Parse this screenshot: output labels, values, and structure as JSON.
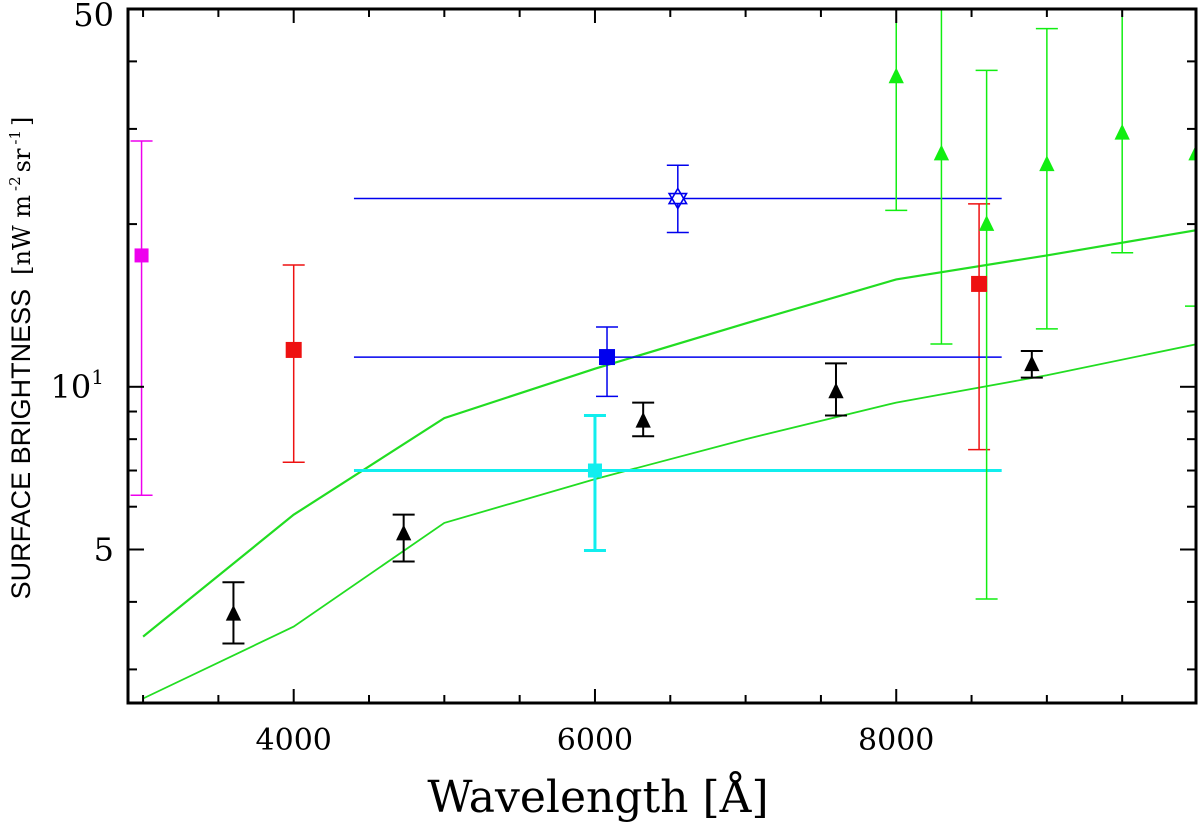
{
  "chart_data": {
    "type": "scatter",
    "xlabel": "Wavelength  [Å]",
    "ylabel": "SURFACE BRIGHTNESS",
    "ylabel_units_prefix": "[nW m",
    "ylabel_units_exp1": "-2",
    "ylabel_units_mid": " sr",
    "ylabel_units_exp2": "-1",
    "ylabel_units_suffix": "]",
    "xlim": [
      2900,
      9990
    ],
    "ylim": [
      2.6,
      50
    ],
    "yscale": "log",
    "x_ticks": [
      {
        "value": 4000,
        "label": "4000"
      },
      {
        "value": 6000,
        "label": "6000"
      },
      {
        "value": 8000,
        "label": "8000"
      }
    ],
    "y_ticks": [
      {
        "value": 5,
        "label": "5"
      },
      {
        "value": 10,
        "label": "10",
        "sup": "1"
      },
      {
        "value": 50,
        "label": "50"
      }
    ],
    "y_minor_ticks": [
      3,
      4,
      6,
      7,
      8,
      9,
      20,
      30,
      40
    ],
    "x_minor_step": 500,
    "model_lines": [
      {
        "name": "model-upper",
        "color": "#22dd22",
        "x": [
          3000,
          4000,
          5000,
          6000,
          7000,
          8000,
          9000,
          10000
        ],
        "y": [
          3.45,
          5.8,
          8.75,
          10.8,
          13.1,
          15.8,
          17.5,
          19.5
        ]
      },
      {
        "name": "model-lower",
        "color": "#22dd22",
        "x": [
          3000,
          4000,
          5000,
          6000,
          7000,
          8000,
          9000,
          10000
        ],
        "y": [
          2.65,
          3.6,
          5.6,
          6.75,
          8.0,
          9.35,
          10.5,
          12.0
        ]
      }
    ],
    "series": [
      {
        "name": "magenta-square",
        "color": "#ee00ee",
        "marker": "square",
        "size": 14,
        "lw": 1.5,
        "points": [
          {
            "x": 2990,
            "y": 17.5,
            "ylo": 6.3,
            "yhi": 28.5
          }
        ]
      },
      {
        "name": "red-squares",
        "color": "#ee1111",
        "marker": "square",
        "size": 16,
        "lw": 1.5,
        "points": [
          {
            "x": 4000,
            "y": 11.7,
            "ylo": 7.25,
            "yhi": 16.8
          },
          {
            "x": 8550,
            "y": 15.5,
            "ylo": 7.65,
            "yhi": 21.8
          }
        ]
      },
      {
        "name": "blue-square",
        "color": "#0000ee",
        "marker": "square",
        "size": 16,
        "lw": 1.5,
        "points": [
          {
            "x": 6080,
            "y": 11.35,
            "ylo": 9.6,
            "yhi": 12.9,
            "xlo": 4400,
            "xhi": 8700
          }
        ]
      },
      {
        "name": "blue-star",
        "color": "#0000ee",
        "marker": "star",
        "size": 20,
        "lw": 1.5,
        "points": [
          {
            "x": 6550,
            "y": 22.3,
            "ylo": 19.3,
            "yhi": 25.7,
            "xlo": 4400,
            "xhi": 8700
          }
        ]
      },
      {
        "name": "cyan-square",
        "color": "#11eeee",
        "marker": "square",
        "size": 14,
        "lw": 3,
        "points": [
          {
            "x": 6000,
            "y": 7.0,
            "ylo": 4.98,
            "yhi": 8.85,
            "xlo": 4400,
            "xhi": 8700
          }
        ]
      },
      {
        "name": "black-triangles",
        "color": "#000000",
        "marker": "triangle",
        "size": 18,
        "lw": 2,
        "points": [
          {
            "x": 3600,
            "y": 3.8,
            "ylo": 3.35,
            "yhi": 4.35
          },
          {
            "x": 4730,
            "y": 5.35,
            "ylo": 4.75,
            "yhi": 5.8
          },
          {
            "x": 6320,
            "y": 8.65,
            "ylo": 8.1,
            "yhi": 9.35
          },
          {
            "x": 7600,
            "y": 9.8,
            "ylo": 8.85,
            "yhi": 11.05
          },
          {
            "x": 8900,
            "y": 11.0,
            "ylo": 10.4,
            "yhi": 11.65
          }
        ]
      },
      {
        "name": "green-triangles",
        "color": "#11ee11",
        "marker": "triangle",
        "size": 18,
        "lw": 1.5,
        "points": [
          {
            "x": 8000,
            "y": 37.5,
            "ylo": 21.2,
            "yhi": 52.0
          },
          {
            "x": 8300,
            "y": 27.0,
            "ylo": 12.0,
            "yhi": 52.0
          },
          {
            "x": 8600,
            "y": 20.0,
            "ylo": 4.05,
            "yhi": 38.5
          },
          {
            "x": 9000,
            "y": 25.8,
            "ylo": 12.8,
            "yhi": 46.0
          },
          {
            "x": 9500,
            "y": 29.5,
            "ylo": 17.7,
            "yhi": 52.0
          },
          {
            "x": 9990,
            "y": 27.0,
            "ylo": 14.1,
            "yhi": 52.0
          }
        ]
      }
    ]
  }
}
